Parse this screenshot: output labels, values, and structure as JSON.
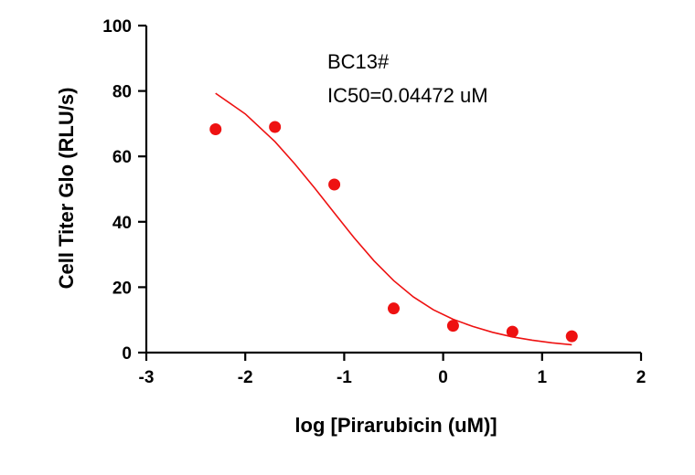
{
  "chart_data": {
    "type": "scatter",
    "title": "",
    "xlabel": "log [Pirarubicin (uM)]",
    "ylabel": "Cell Titer Glo (RLU/s)",
    "xlim": [
      -3,
      2
    ],
    "ylim": [
      0,
      100
    ],
    "xticks": [
      -3,
      -2,
      -1,
      0,
      1,
      2
    ],
    "yticks": [
      0,
      20,
      40,
      60,
      80,
      100
    ],
    "grid": false,
    "legend": "none",
    "annotations": [
      "BC13#",
      "IC50=0.04472 uM"
    ],
    "series": [
      {
        "type": "scatter",
        "color": "#ee1111",
        "x": [
          -2.3,
          -1.7,
          -1.1,
          -0.5,
          0.1,
          0.7,
          1.3
        ],
        "y": [
          68.3,
          69.0,
          51.4,
          13.5,
          8.2,
          6.4,
          5.0
        ]
      },
      {
        "type": "line",
        "color": "#ee1111",
        "x": [
          -2.3,
          -2.0,
          -1.7,
          -1.5,
          -1.3,
          -1.1,
          -0.9,
          -0.7,
          -0.5,
          -0.3,
          -0.1,
          0.1,
          0.3,
          0.5,
          0.7,
          0.9,
          1.1,
          1.3
        ],
        "y": [
          79.3,
          73.0,
          64.5,
          57.7,
          50.4,
          42.7,
          35.1,
          28.1,
          22.0,
          17.0,
          13.1,
          10.2,
          8.0,
          6.2,
          4.8,
          3.8,
          3.0,
          2.4
        ]
      }
    ]
  }
}
